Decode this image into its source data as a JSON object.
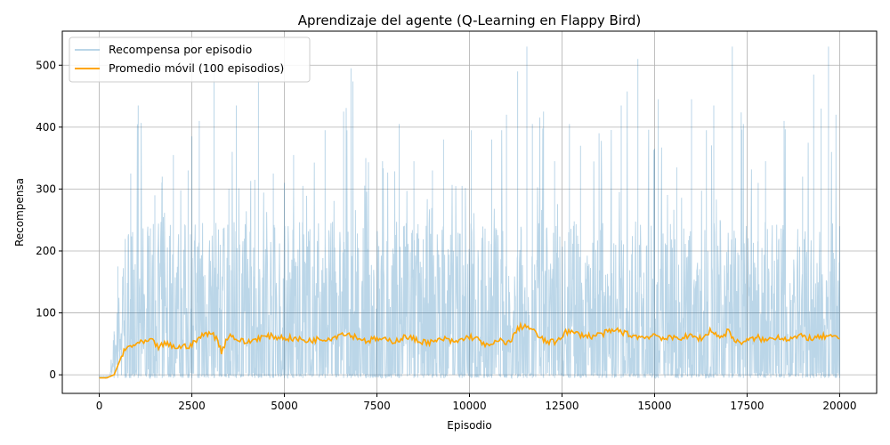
{
  "chart_data": {
    "type": "line",
    "title": "Aprendizaje del agente (Q-Learning en Flappy Bird)",
    "xlabel": "Episodio",
    "ylabel": "Recompensa",
    "xlim": [
      -1000,
      21000
    ],
    "ylim": [
      -30,
      555
    ],
    "xticks": [
      0,
      2500,
      5000,
      7500,
      10000,
      12500,
      15000,
      17500,
      20000
    ],
    "yticks": [
      0,
      100,
      200,
      300,
      400,
      500
    ],
    "grid": true,
    "legend_position": "top-left",
    "series": [
      {
        "name": "Recompensa por episodio",
        "color": "#1f77b4",
        "alpha": 0.3,
        "x_range": [
          0,
          20000
        ],
        "points_sampled": [
          [
            0,
            -5
          ],
          [
            250,
            -3
          ],
          [
            400,
            70
          ],
          [
            500,
            175
          ],
          [
            700,
            180
          ],
          [
            850,
            325
          ],
          [
            1050,
            435
          ],
          [
            1500,
            290
          ],
          [
            1700,
            320
          ],
          [
            2000,
            355
          ],
          [
            2400,
            330
          ],
          [
            2500,
            385
          ],
          [
            2700,
            410
          ],
          [
            3100,
            505
          ],
          [
            3500,
            300
          ],
          [
            3700,
            435
          ],
          [
            4200,
            315
          ],
          [
            4300,
            480
          ],
          [
            4700,
            325
          ],
          [
            5000,
            310
          ],
          [
            5250,
            355
          ],
          [
            5500,
            305
          ],
          [
            6100,
            395
          ],
          [
            6600,
            425
          ],
          [
            6800,
            495
          ],
          [
            7200,
            350
          ],
          [
            7650,
            345
          ],
          [
            8100,
            405
          ],
          [
            8500,
            345
          ],
          [
            9000,
            330
          ],
          [
            9300,
            380
          ],
          [
            9800,
            305
          ],
          [
            10050,
            395
          ],
          [
            10600,
            380
          ],
          [
            11000,
            420
          ],
          [
            11300,
            490
          ],
          [
            11550,
            530
          ],
          [
            11700,
            405
          ],
          [
            12000,
            425
          ],
          [
            12300,
            345
          ],
          [
            12700,
            405
          ],
          [
            13000,
            370
          ],
          [
            13500,
            390
          ],
          [
            14100,
            435
          ],
          [
            14550,
            510
          ],
          [
            15000,
            365
          ],
          [
            15100,
            445
          ],
          [
            15600,
            335
          ],
          [
            16000,
            445
          ],
          [
            16400,
            395
          ],
          [
            16600,
            435
          ],
          [
            17100,
            530
          ],
          [
            17400,
            405
          ],
          [
            17800,
            310
          ],
          [
            18000,
            345
          ],
          [
            18500,
            410
          ],
          [
            19000,
            320
          ],
          [
            19300,
            485
          ],
          [
            19500,
            430
          ],
          [
            19700,
            530
          ],
          [
            19900,
            420
          ],
          [
            20000,
            240
          ]
        ],
        "typical_max": 250,
        "typical_min": -5
      },
      {
        "name": "Promedio móvil (100 episodios)",
        "color": "#ffa500",
        "points": [
          [
            0,
            -5
          ],
          [
            200,
            -5
          ],
          [
            400,
            0
          ],
          [
            500,
            15
          ],
          [
            600,
            30
          ],
          [
            700,
            40
          ],
          [
            800,
            45
          ],
          [
            1000,
            50
          ],
          [
            1200,
            52
          ],
          [
            1400,
            55
          ],
          [
            1600,
            45
          ],
          [
            1800,
            50
          ],
          [
            2000,
            45
          ],
          [
            2200,
            45
          ],
          [
            2500,
            48
          ],
          [
            2700,
            60
          ],
          [
            3000,
            70
          ],
          [
            3200,
            55
          ],
          [
            3300,
            38
          ],
          [
            3500,
            65
          ],
          [
            3800,
            55
          ],
          [
            4000,
            52
          ],
          [
            4300,
            60
          ],
          [
            4600,
            62
          ],
          [
            5000,
            60
          ],
          [
            5300,
            58
          ],
          [
            5600,
            55
          ],
          [
            6000,
            58
          ],
          [
            6300,
            60
          ],
          [
            6600,
            68
          ],
          [
            6900,
            62
          ],
          [
            7200,
            55
          ],
          [
            7500,
            58
          ],
          [
            7800,
            55
          ],
          [
            8000,
            55
          ],
          [
            8300,
            62
          ],
          [
            8600,
            55
          ],
          [
            9000,
            52
          ],
          [
            9300,
            58
          ],
          [
            9600,
            52
          ],
          [
            10000,
            62
          ],
          [
            10300,
            55
          ],
          [
            10500,
            45
          ],
          [
            10800,
            55
          ],
          [
            11100,
            52
          ],
          [
            11300,
            75
          ],
          [
            11500,
            80
          ],
          [
            11700,
            72
          ],
          [
            12000,
            55
          ],
          [
            12300,
            52
          ],
          [
            12600,
            70
          ],
          [
            13000,
            65
          ],
          [
            13300,
            62
          ],
          [
            13700,
            68
          ],
          [
            14000,
            72
          ],
          [
            14300,
            65
          ],
          [
            14700,
            60
          ],
          [
            15000,
            65
          ],
          [
            15300,
            58
          ],
          [
            15600,
            60
          ],
          [
            16000,
            62
          ],
          [
            16300,
            58
          ],
          [
            16500,
            72
          ],
          [
            16800,
            60
          ],
          [
            17000,
            72
          ],
          [
            17200,
            52
          ],
          [
            17500,
            55
          ],
          [
            17800,
            60
          ],
          [
            18000,
            55
          ],
          [
            18300,
            62
          ],
          [
            18600,
            58
          ],
          [
            19000,
            62
          ],
          [
            19300,
            58
          ],
          [
            19600,
            62
          ],
          [
            19800,
            60
          ],
          [
            20000,
            58
          ]
        ]
      }
    ]
  }
}
